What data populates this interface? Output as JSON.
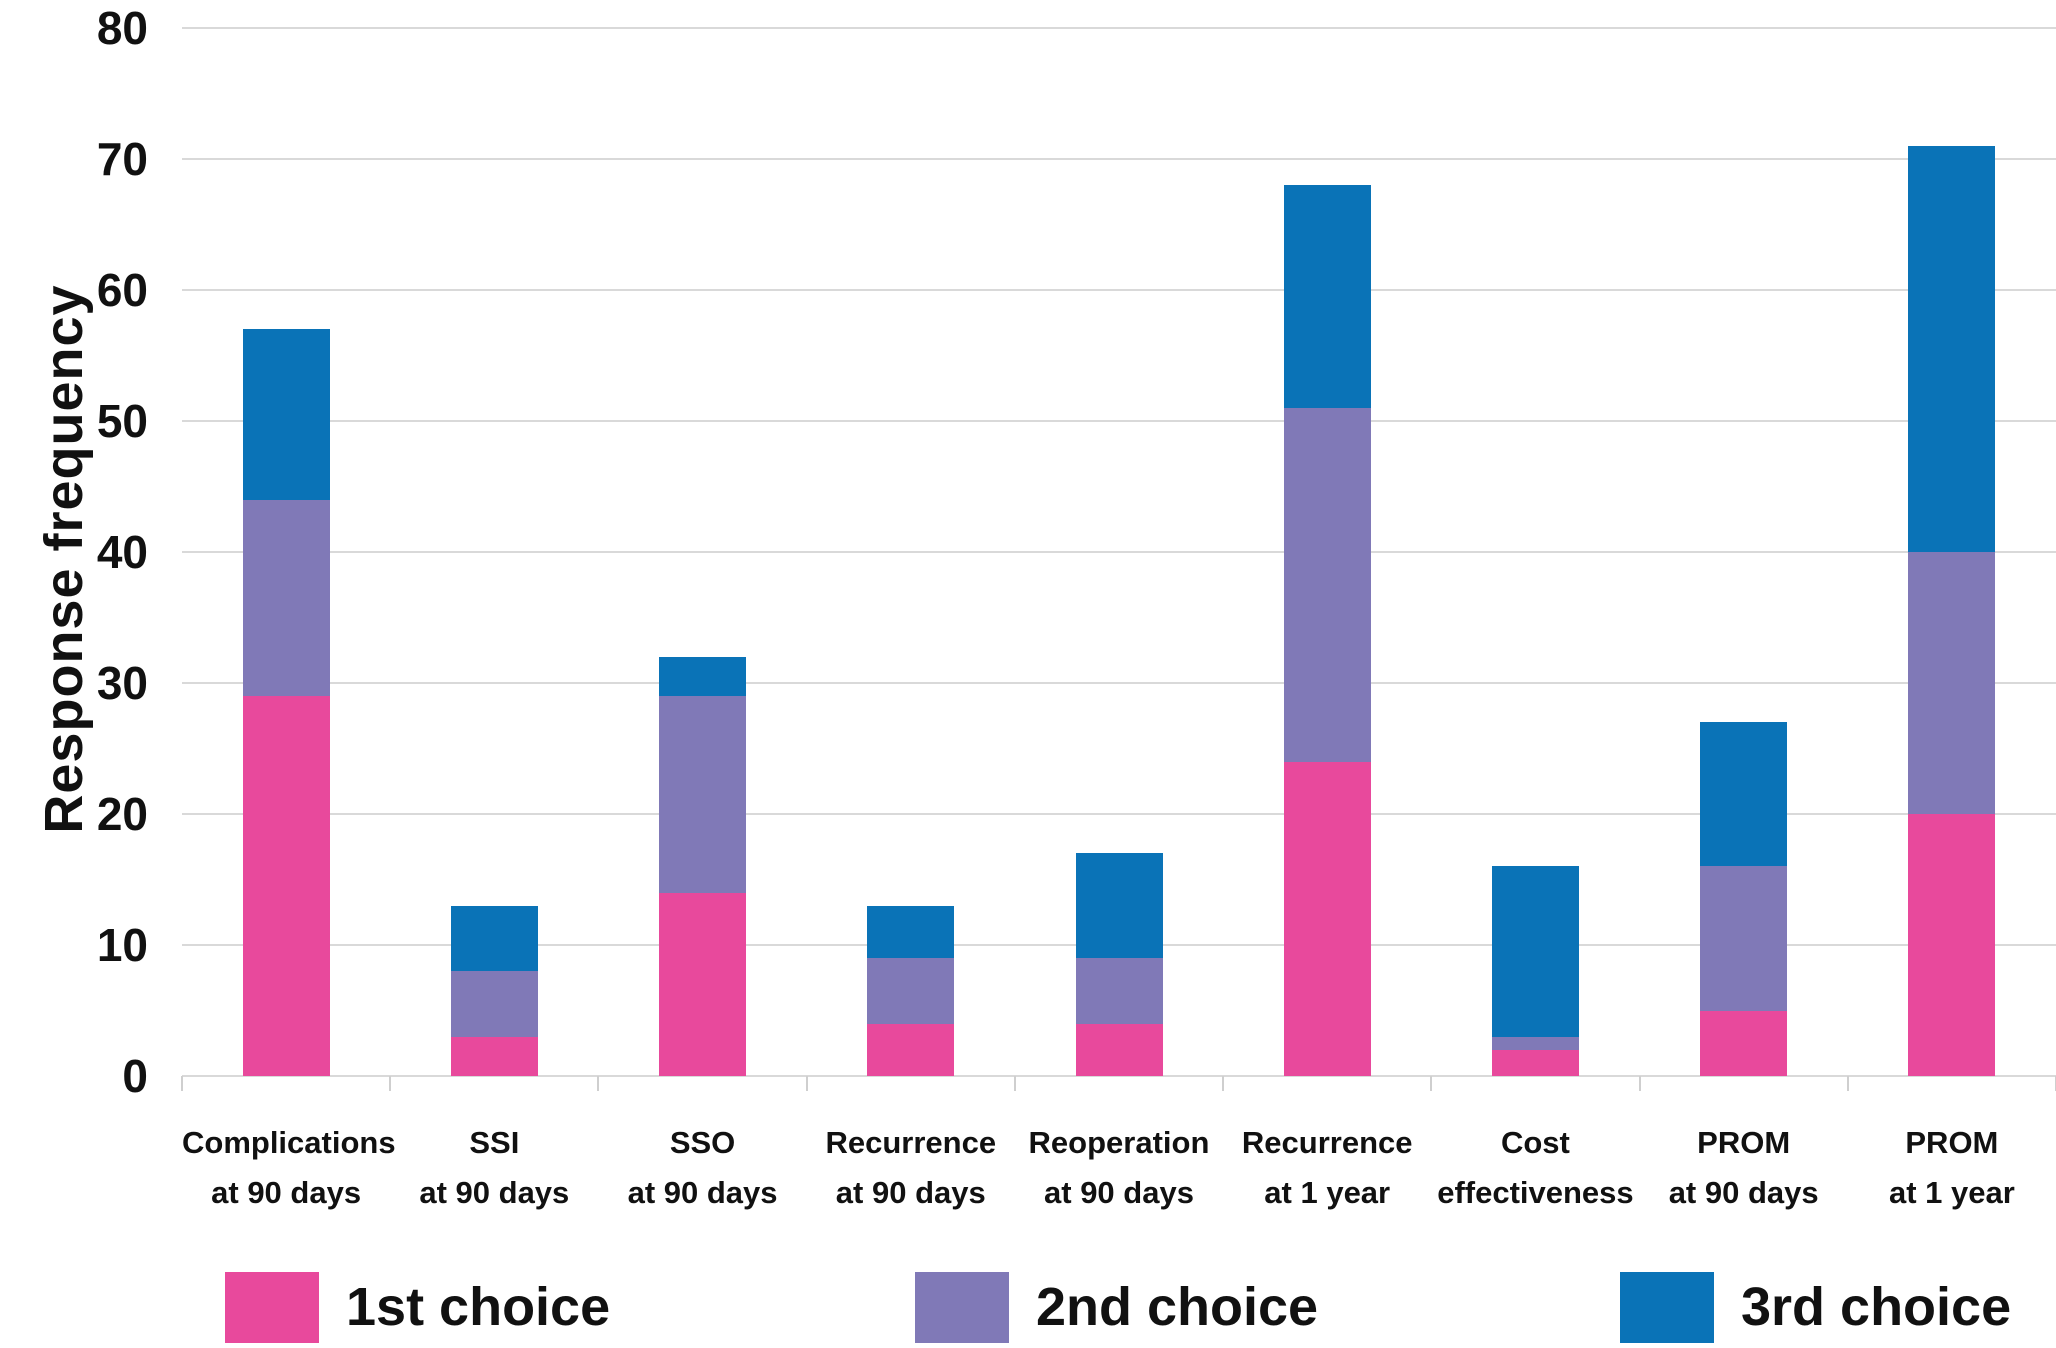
{
  "chart_data": {
    "type": "bar",
    "stacked": true,
    "title": "",
    "xlabel": "",
    "ylabel": "Response frequency",
    "ylim": [
      0,
      80
    ],
    "yticks": [
      0,
      10,
      20,
      30,
      40,
      50,
      60,
      70,
      80
    ],
    "grid": true,
    "legend_position": "bottom",
    "categories": [
      [
        "Complications",
        "at 90 days"
      ],
      [
        "SSI",
        "at 90 days"
      ],
      [
        "SSO",
        "at 90 days"
      ],
      [
        "Recurrence",
        "at 90 days"
      ],
      [
        "Reoperation",
        "at 90 days"
      ],
      [
        "Recurrence",
        "at 1 year"
      ],
      [
        "Cost",
        "effectiveness"
      ],
      [
        "PROM",
        "at 90 days"
      ],
      [
        "PROM",
        "at 1 year"
      ]
    ],
    "series": [
      {
        "name": "1st choice",
        "color": "#E8499C",
        "values": [
          29,
          3,
          14,
          4,
          4,
          24,
          2,
          5,
          20
        ]
      },
      {
        "name": "2nd choice",
        "color": "#8079B7",
        "values": [
          15,
          5,
          15,
          5,
          5,
          27,
          1,
          11,
          20
        ]
      },
      {
        "name": "3rd choice",
        "color": "#0A73B7",
        "values": [
          13,
          5,
          3,
          4,
          8,
          17,
          13,
          11,
          31
        ]
      }
    ],
    "stack_totals": [
      57,
      13,
      32,
      13,
      17,
      68,
      16,
      27,
      71
    ]
  },
  "style_colors": {
    "gridline": "#D9D9D9",
    "axis_tick": "#CFCFCF",
    "text": "#111111",
    "background": "#FFFFFF"
  },
  "legend": {
    "items": [
      {
        "label": "1st choice",
        "color": "#E8499C"
      },
      {
        "label": "2nd choice",
        "color": "#8079B7"
      },
      {
        "label": "3rd choice",
        "color": "#0A73B7"
      }
    ]
  }
}
